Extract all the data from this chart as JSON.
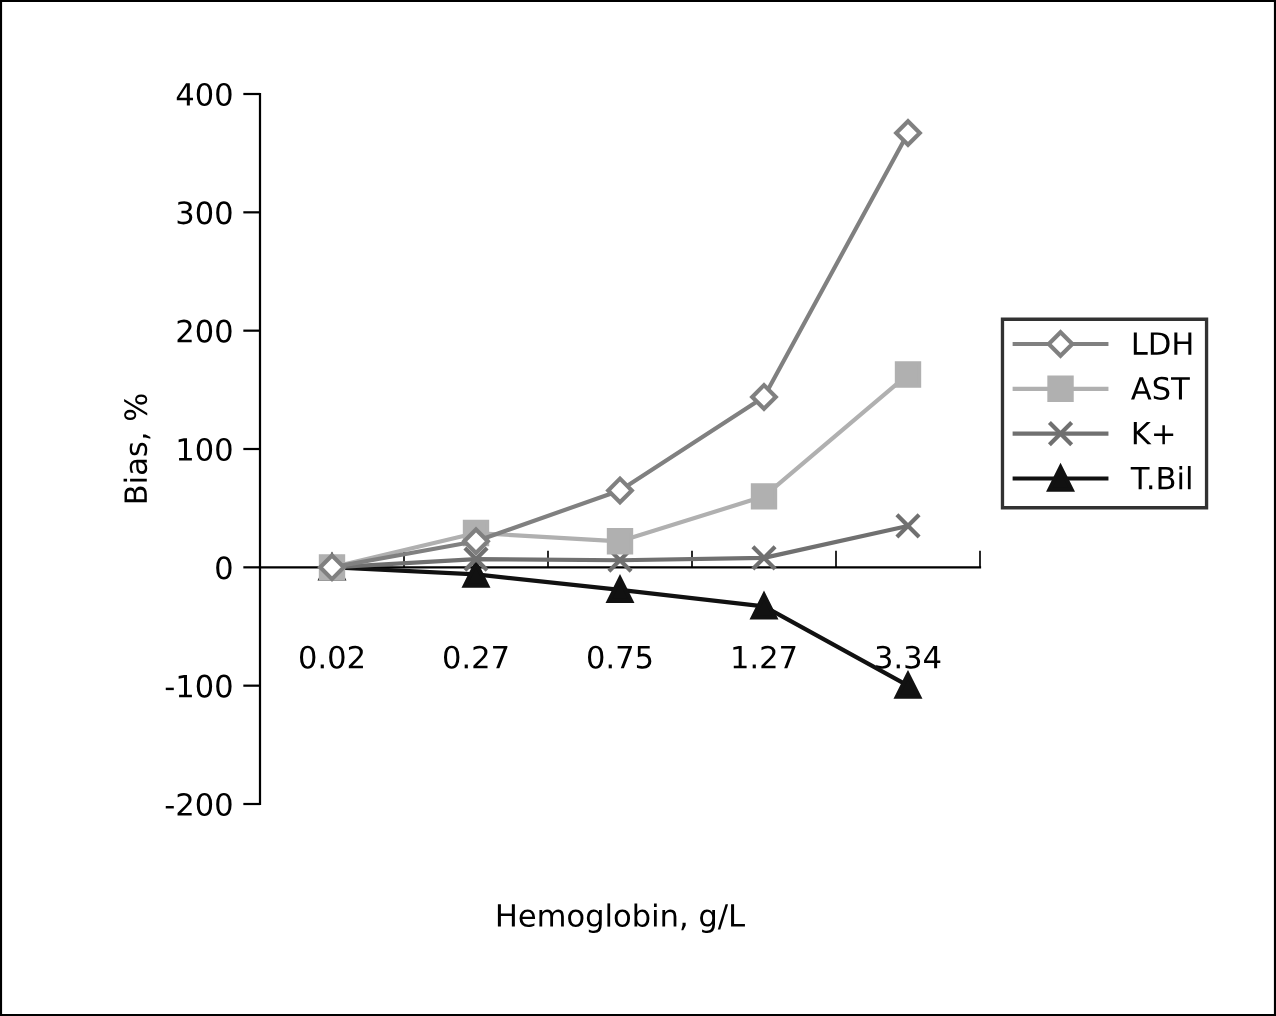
{
  "chart_data": {
    "type": "line",
    "xlabel": "Hemoglobin, g/L",
    "ylabel": "Bias, %",
    "categories": [
      "0.02",
      "0.27",
      "0.75",
      "1.27",
      "3.34"
    ],
    "series": [
      {
        "name": "LDH",
        "color": "#808080",
        "marker": "diamond",
        "values": [
          0,
          22,
          65,
          144,
          367
        ]
      },
      {
        "name": "AST",
        "color": "#b0b0b0",
        "marker": "square",
        "values": [
          0,
          29,
          22,
          60,
          163
        ]
      },
      {
        "name": "K+",
        "color": "#707070",
        "marker": "cross",
        "values": [
          0,
          7,
          6,
          8,
          35
        ]
      },
      {
        "name": "T.Bil",
        "color": "#111111",
        "marker": "triangle",
        "values": [
          0,
          -6,
          -19,
          -33,
          -100
        ]
      }
    ],
    "ylim": [
      -200,
      400
    ],
    "yticks": [
      -200,
      -100,
      0,
      100,
      200,
      300,
      400
    ],
    "grid": false,
    "legend": "right",
    "line_style": "solid"
  }
}
